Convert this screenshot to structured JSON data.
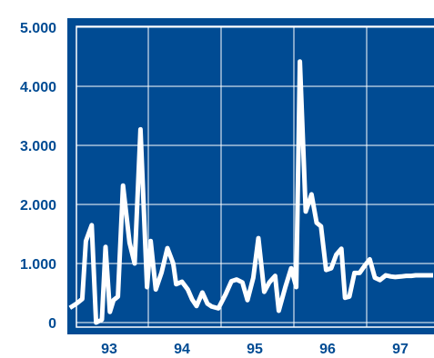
{
  "chart_data": {
    "type": "line",
    "title": "",
    "xlabel": "",
    "ylabel": "",
    "x_ticks": [
      "93",
      "94",
      "95",
      "96",
      "97"
    ],
    "x_tick_values": [
      93,
      94,
      95,
      96,
      97
    ],
    "xlim": [
      92.45,
      97.45
    ],
    "y_ticks": [
      "0",
      "1.000",
      "2.000",
      "3.000",
      "4.000",
      "5.000"
    ],
    "y_tick_values": [
      0,
      1000,
      2000,
      3000,
      4000,
      5000
    ],
    "ylim": [
      0,
      5000
    ],
    "grid": true,
    "series": [
      {
        "name": "",
        "x": [
          92.46,
          92.55,
          92.63,
          92.68,
          92.76,
          92.82,
          92.9,
          92.95,
          93.01,
          93.06,
          93.12,
          93.19,
          93.28,
          93.35,
          93.43,
          93.52,
          93.57,
          93.64,
          93.72,
          93.8,
          93.88,
          93.92,
          94.0,
          94.08,
          94.14,
          94.2,
          94.28,
          94.35,
          94.41,
          94.5,
          94.6,
          94.68,
          94.75,
          94.83,
          94.9,
          94.98,
          95.05,
          95.13,
          95.2,
          95.28,
          95.33,
          95.42,
          95.5,
          95.57,
          95.62,
          95.7,
          95.78,
          95.85,
          95.91,
          95.98,
          96.05,
          96.12,
          96.19,
          96.24,
          96.3,
          96.37,
          96.44,
          96.52,
          96.58,
          96.65,
          96.72,
          96.8,
          96.87,
          96.93,
          97.01,
          97.08,
          97.15,
          97.21,
          97.27,
          97.35,
          97.41,
          97.45
        ],
        "values": [
          250,
          320,
          400,
          1380,
          1650,
          0,
          50,
          1280,
          180,
          380,
          440,
          2320,
          1350,
          1000,
          3270,
          600,
          1380,
          560,
          850,
          1260,
          1000,
          650,
          690,
          560,
          390,
          280,
          510,
          320,
          270,
          240,
          480,
          700,
          730,
          680,
          380,
          760,
          1430,
          520,
          680,
          790,
          200,
          600,
          920,
          600,
          4420,
          1880,
          2170,
          1690,
          1630,
          890,
          920,
          1150,
          1250,
          420,
          440,
          840,
          840,
          980,
          1070,
          760,
          720,
          800,
          780,
          770,
          780,
          790,
          790,
          800,
          800,
          800,
          800,
          800
        ]
      }
    ],
    "colors": {
      "plot_background": "#004b93",
      "line": "#ffffff",
      "grid": "#ffffff",
      "frame": "#004b93",
      "tick_label": "#004b93"
    }
  }
}
